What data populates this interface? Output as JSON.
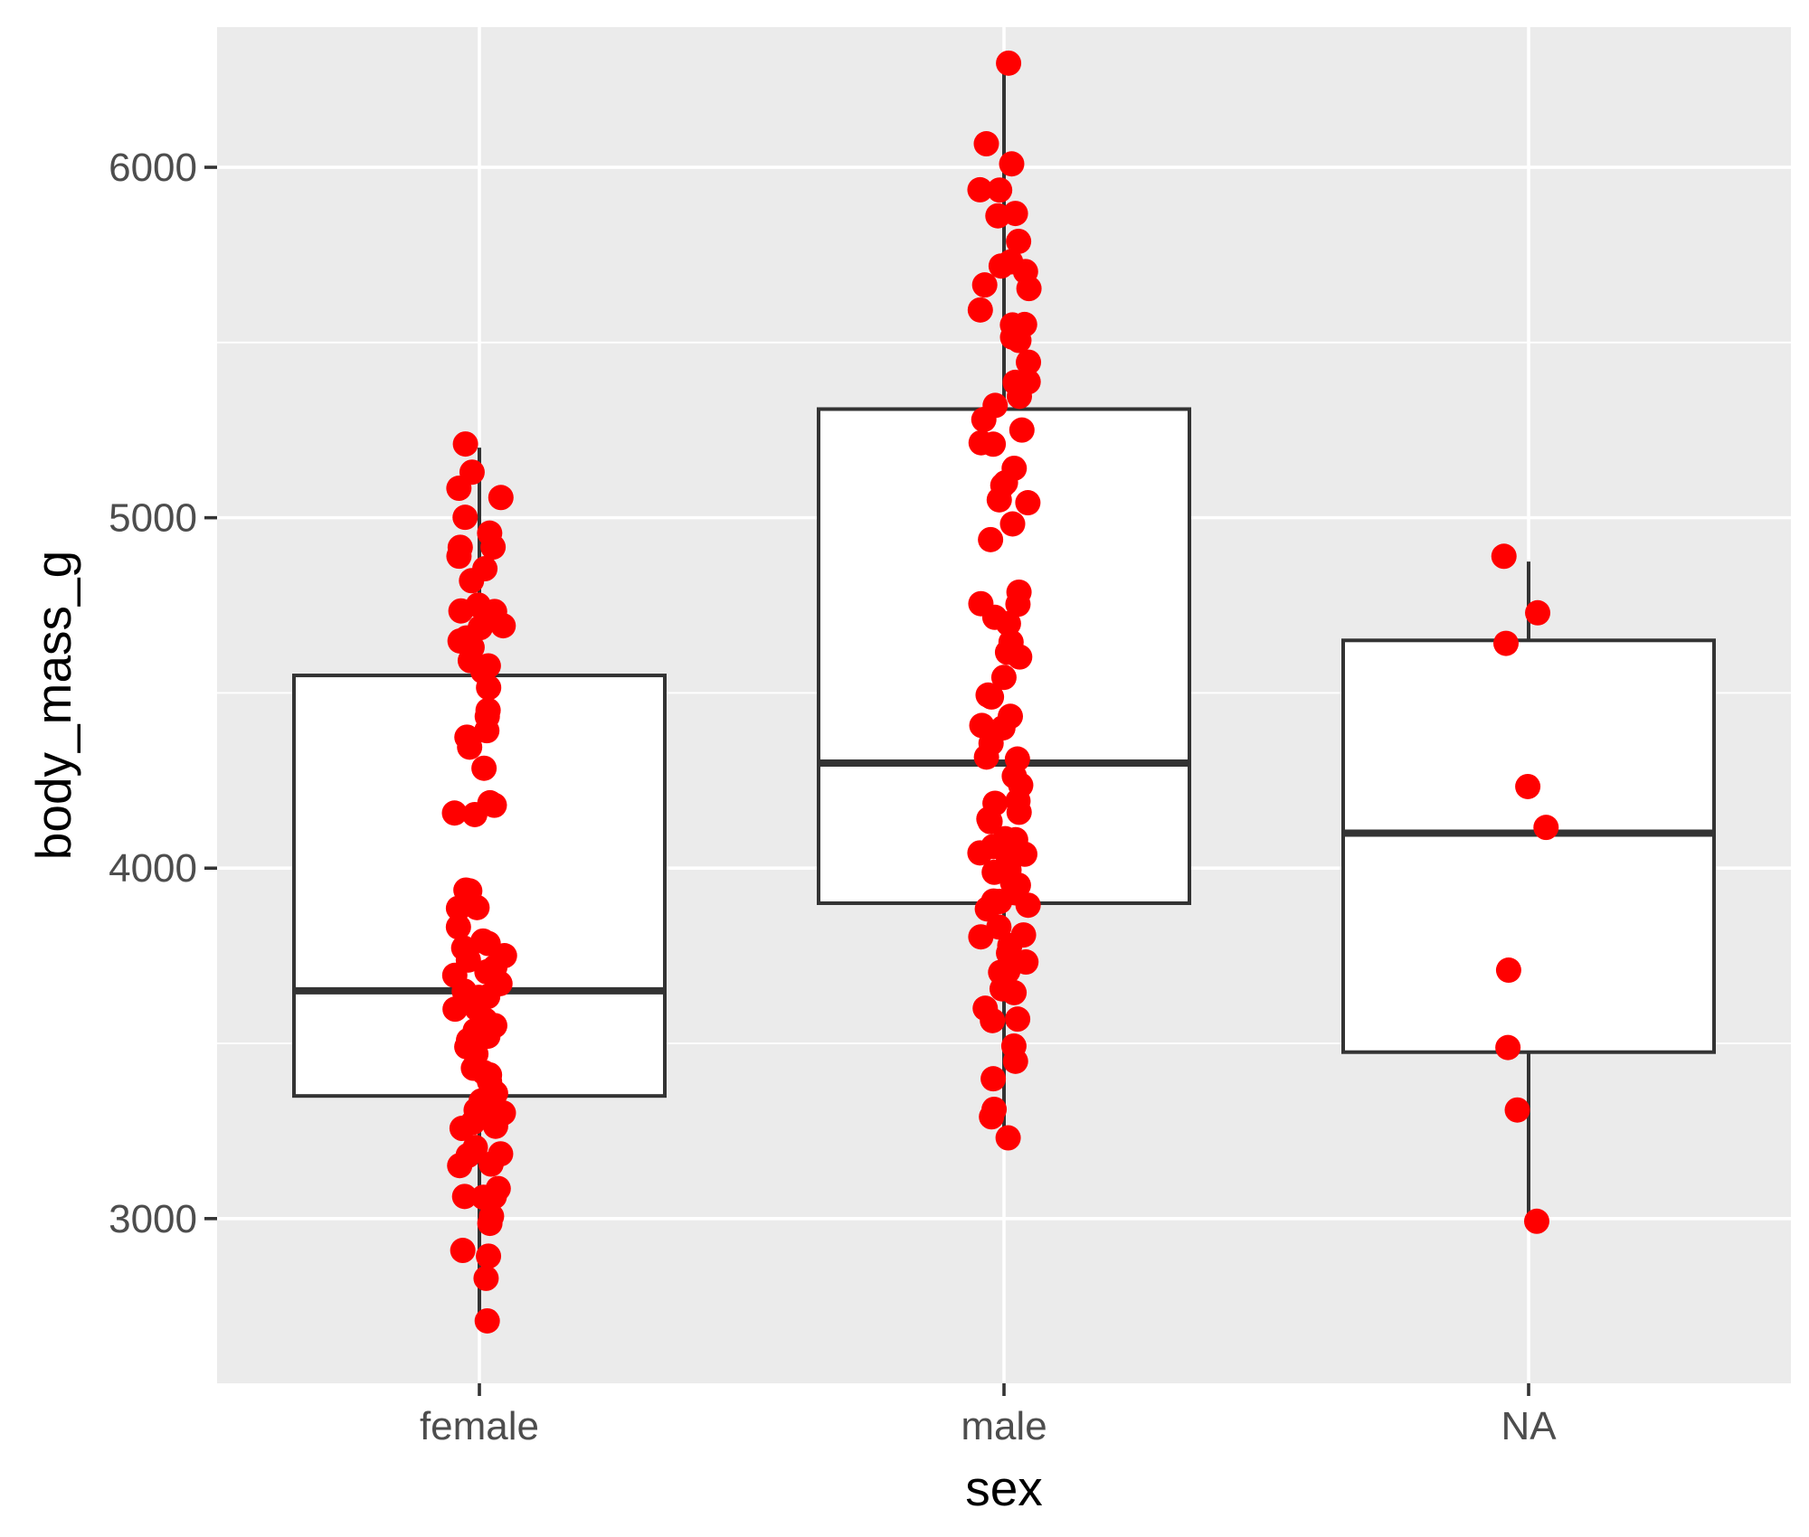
{
  "chart_data": {
    "type": "boxplot",
    "title": "",
    "xlabel": "sex",
    "ylabel": "body_mass_g",
    "ylim": [
      2530,
      6400
    ],
    "y_ticks": [
      3000,
      4000,
      5000,
      6000
    ],
    "y_minor_ticks": [
      3500,
      4500,
      5500
    ],
    "grid": true,
    "colors": {
      "panel": "#ebebeb",
      "grid": "#ffffff",
      "box_fill": "#ffffff",
      "box_stroke": "#333333",
      "points": "#ff0000",
      "tick_text": "#4d4d4d"
    },
    "categories": [
      "female",
      "male",
      "NA"
    ],
    "boxes": [
      {
        "category": "female",
        "min": 2700,
        "q1": 3350,
        "median": 3650,
        "q3": 4550,
        "max": 5200
      },
      {
        "category": "male",
        "min": 3250,
        "q1": 3900,
        "median": 4300,
        "q3": 5310,
        "max": 6300
      },
      {
        "category": "NA",
        "min": 2975,
        "q1": 3475,
        "median": 4100,
        "q3": 4650,
        "max": 4875
      }
    ],
    "points": [
      {
        "category": "female",
        "values": [
          2700,
          2850,
          2900,
          2925,
          3000,
          3000,
          3050,
          3050,
          3075,
          3100,
          3150,
          3150,
          3175,
          3200,
          3200,
          3250,
          3250,
          3275,
          3300,
          3300,
          3325,
          3350,
          3350,
          3375,
          3400,
          3400,
          3400,
          3425,
          3450,
          3450,
          3475,
          3500,
          3500,
          3525,
          3550,
          3550,
          3575,
          3600,
          3600,
          3625,
          3650,
          3650,
          3675,
          3700,
          3700,
          3725,
          3750,
          3750,
          3775,
          3800,
          3800,
          3850,
          3875,
          3900,
          3950,
          3950,
          4150,
          4150,
          4200,
          4200,
          4300,
          4325,
          4375,
          4400,
          4450,
          4450,
          4500,
          4550,
          4575,
          4600,
          4625,
          4650,
          4650,
          4700,
          4700,
          4725,
          4750,
          4750,
          4800,
          4850,
          4875,
          4900,
          4925,
          4950,
          5000,
          5050,
          5100,
          5150,
          5200
        ]
      },
      {
        "category": "male",
        "values": [
          3250,
          3300,
          3325,
          3400,
          3450,
          3500,
          3550,
          3550,
          3600,
          3650,
          3650,
          3700,
          3700,
          3750,
          3750,
          3775,
          3800,
          3800,
          3850,
          3875,
          3900,
          3900,
          3925,
          3950,
          3950,
          3975,
          4000,
          4000,
          4025,
          4050,
          4050,
          4075,
          4100,
          4100,
          4125,
          4150,
          4150,
          4200,
          4200,
          4250,
          4250,
          4300,
          4300,
          4350,
          4400,
          4400,
          4450,
          4475,
          4500,
          4550,
          4600,
          4600,
          4650,
          4700,
          4700,
          4750,
          4775,
          4800,
          4925,
          5000,
          5050,
          5050,
          5100,
          5100,
          5150,
          5200,
          5200,
          5250,
          5300,
          5300,
          5350,
          5400,
          5400,
          5450,
          5500,
          5500,
          5550,
          5550,
          5600,
          5650,
          5650,
          5700,
          5700,
          5750,
          5800,
          5850,
          5850,
          5950,
          5950,
          6000,
          6050,
          6300
        ]
      },
      {
        "category": "NA",
        "values": [
          2975,
          3300,
          3475,
          3700,
          4100,
          4250,
          4650,
          4725,
          4875
        ]
      }
    ]
  }
}
